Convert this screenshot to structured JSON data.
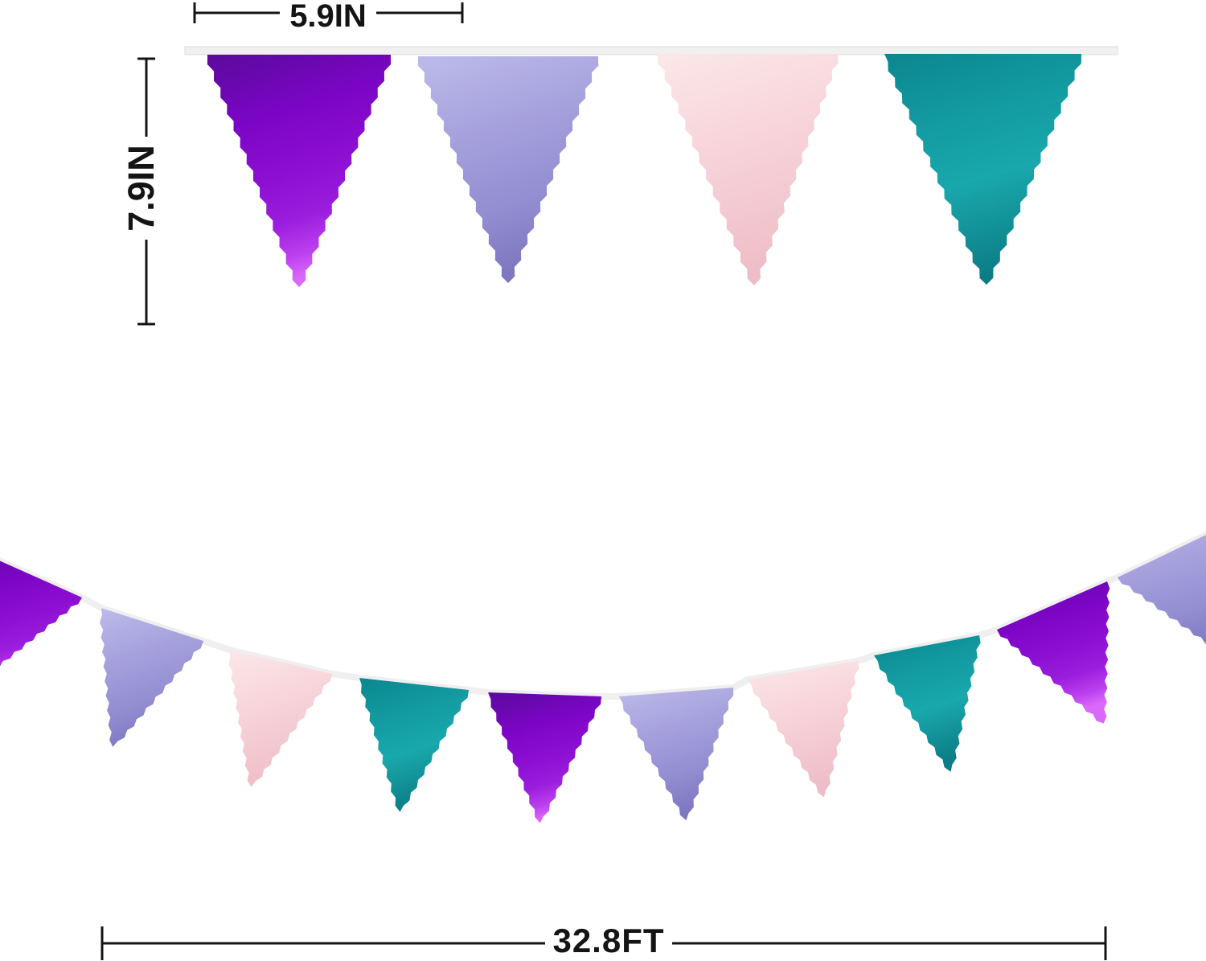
{
  "title": "Pennant banner flags with size measurements",
  "dimensions": {
    "flag_width_label": "5.9IN",
    "flag_height_label": "7.9IN",
    "banner_length_label": "32.8FT"
  },
  "palette": {
    "line": "#141414",
    "background": "#ffffff",
    "ribbon": "#f0f0f0",
    "ribbon_edge": "#dddddd",
    "string": "#efefef",
    "flags": {
      "purple": [
        [
          "#5c0a9e",
          0
        ],
        [
          "#7b05c5",
          0.3
        ],
        [
          "#8c0ed2",
          0.55
        ],
        [
          "#9a1cdc",
          0.75
        ],
        [
          "#bb3fee",
          0.9
        ],
        [
          "#da68fa",
          1
        ]
      ],
      "lavender": [
        [
          "#bcb9ea",
          0
        ],
        [
          "#a7a2dd",
          0.35
        ],
        [
          "#948ed2",
          0.7
        ],
        [
          "#7e77c1",
          1
        ]
      ],
      "pink": [
        [
          "#fbe6e8",
          0
        ],
        [
          "#f7d4da",
          0.45
        ],
        [
          "#f2c5cd",
          0.8
        ],
        [
          "#eebdc7",
          1
        ]
      ],
      "teal": [
        [
          "#0d8791",
          0
        ],
        [
          "#129aa0",
          0.3
        ],
        [
          "#19a8ac",
          0.6
        ],
        [
          "#0c7d86",
          1
        ]
      ]
    }
  },
  "top_row": {
    "flag_colors": [
      "purple",
      "lavender",
      "pink",
      "teal"
    ]
  },
  "garland": {
    "flag_colors": [
      "purple",
      "lavender",
      "pink",
      "teal",
      "purple",
      "lavender",
      "pink",
      "teal",
      "purple",
      "lavender"
    ]
  }
}
